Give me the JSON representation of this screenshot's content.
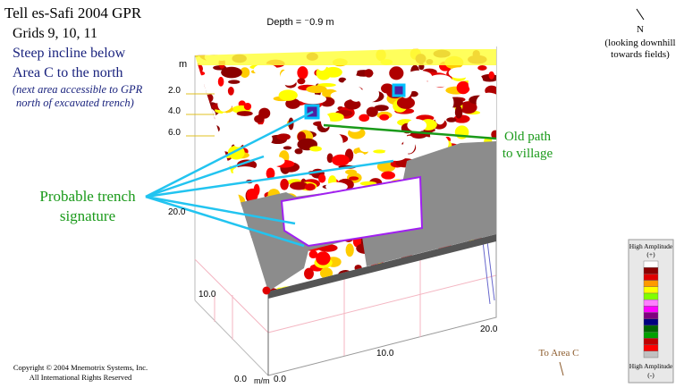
{
  "title_block": {
    "title": "Tell es-Safi 2004 GPR",
    "grids": "Grids 9, 10, 11",
    "notes": [
      "Steep incline below",
      "Area C to the north"
    ],
    "italic_notes": [
      "(next area accessible to GPR",
      "north of excavated trench)"
    ]
  },
  "depth_label": "Depth = ⁻0.9 m",
  "north": {
    "symbol": "N",
    "lines": [
      "(looking downhill",
      "towards fields)"
    ]
  },
  "annotations": {
    "old_path": [
      "Old path",
      "to village"
    ],
    "trench": [
      "Probable trench",
      "signature"
    ],
    "to_area_c": "To Area C"
  },
  "axes": {
    "depth_unit": "m",
    "depth_ticks": [
      "2.0",
      "4.0",
      "6.0"
    ],
    "left_ticks": [
      "20.0",
      "10.0",
      "0.0"
    ],
    "unit": "m/m",
    "bottom_ticks": [
      "0.0",
      "10.0",
      "20.0"
    ]
  },
  "legend": {
    "top": [
      "High Amplitude",
      "(+)"
    ],
    "bottom": [
      "High Amplitude",
      "(-)"
    ],
    "colors": [
      "#ffffff",
      "#8b0000",
      "#e00000",
      "#ff9900",
      "#ffff00",
      "#80ff00",
      "#ff80ff",
      "#ff00ff",
      "#800080",
      "#000080",
      "#006400",
      "#00a000",
      "#c00000",
      "#ff0000",
      "#c0c0c0"
    ]
  },
  "copyright": [
    "Copyright © 2004 Mnemotrix Systems, Inc.",
    "All International Rights Reserved"
  ]
}
